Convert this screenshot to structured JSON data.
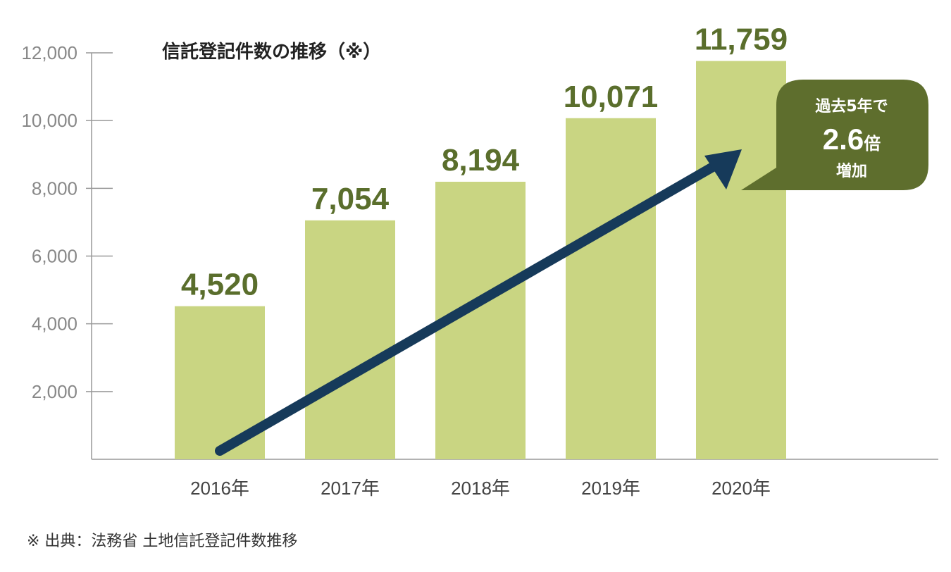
{
  "chart_data": {
    "type": "bar",
    "title": "信託登記件数の推移（※）",
    "categories": [
      "2016年",
      "2017年",
      "2018年",
      "2019年",
      "2020年"
    ],
    "values": [
      4520,
      7054,
      8194,
      10071,
      11759
    ],
    "value_labels": [
      "4,520",
      "7,054",
      "8,194",
      "10,071",
      "11,759"
    ],
    "yticks": [
      2000,
      4000,
      6000,
      8000,
      10000,
      12000
    ],
    "ytick_labels": [
      "2,000",
      "4,000",
      "6,000",
      "8,000",
      "10,000",
      "12,000"
    ],
    "ylim": [
      0,
      12000
    ],
    "grid": false,
    "bar_color": "#c9d582",
    "label_color": "#5a6e2c",
    "arrow_color": "#163a5a",
    "callout": {
      "line1": "過去5年で",
      "value": "2.6",
      "unit": "倍",
      "line3": "増加",
      "color": "#5e6e2d"
    }
  },
  "source_note": "※ 出典：法務省 土地信託登記件数推移"
}
